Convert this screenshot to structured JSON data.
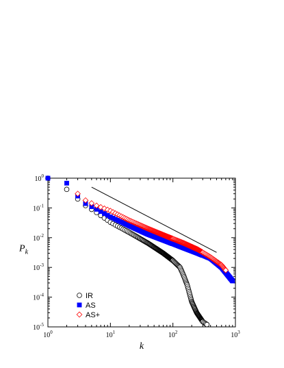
{
  "chart_data": {
    "type": "scatter",
    "x_scale": "log",
    "y_scale": "log",
    "xlim": [
      1,
      1000
    ],
    "ylim": [
      1e-05,
      1
    ],
    "xlabel": "k",
    "ylabel": "P_k",
    "ylabel_main": "P",
    "ylabel_sub": "k",
    "x_ticks": [
      {
        "value": 1,
        "base": "10",
        "exp": "0"
      },
      {
        "value": 10,
        "base": "10",
        "exp": "1"
      },
      {
        "value": 100,
        "base": "10",
        "exp": "2"
      },
      {
        "value": 1000,
        "base": "10",
        "exp": "3"
      }
    ],
    "y_ticks": [
      {
        "value": 1e-05,
        "base": "10",
        "exp": "-5"
      },
      {
        "value": 0.0001,
        "base": "10",
        "exp": "-4"
      },
      {
        "value": 0.001,
        "base": "10",
        "exp": "-3"
      },
      {
        "value": 0.01,
        "base": "10",
        "exp": "-2"
      },
      {
        "value": 0.1,
        "base": "10",
        "exp": "-1"
      },
      {
        "value": 1,
        "base": "10",
        "exp": "0"
      }
    ],
    "legend_position": "bottom-left",
    "series": [
      {
        "name": "IR",
        "marker": "circle-open",
        "color": "#000000",
        "anchors": [
          [
            1,
            1.0
          ],
          [
            2,
            0.42
          ],
          [
            3,
            0.2
          ],
          [
            4,
            0.12
          ],
          [
            6,
            0.07
          ],
          [
            10,
            0.033
          ],
          [
            20,
            0.015
          ],
          [
            40,
            0.0065
          ],
          [
            70,
            0.003
          ],
          [
            100,
            0.0017
          ],
          [
            130,
            0.001
          ],
          [
            150,
            0.0005
          ],
          [
            170,
            0.00025
          ],
          [
            200,
            7e-05
          ],
          [
            240,
            3e-05
          ],
          [
            300,
            1.5e-05
          ],
          [
            350,
            1.2e-05
          ]
        ]
      },
      {
        "name": "AS",
        "marker": "square-filled",
        "color": "#0000ff",
        "anchors": [
          [
            1,
            1.0
          ],
          [
            2,
            0.68
          ],
          [
            3,
            0.25
          ],
          [
            4,
            0.14
          ],
          [
            6,
            0.09
          ],
          [
            10,
            0.05
          ],
          [
            20,
            0.025
          ],
          [
            40,
            0.013
          ],
          [
            80,
            0.0075
          ],
          [
            150,
            0.0045
          ],
          [
            250,
            0.003
          ],
          [
            400,
            0.002
          ],
          [
            600,
            0.001
          ],
          [
            900,
            0.00035
          ]
        ]
      },
      {
        "name": "AS+",
        "marker": "diamond-open",
        "color": "#ff0000",
        "anchors": [
          [
            3,
            0.3
          ],
          [
            4,
            0.18
          ],
          [
            6,
            0.12
          ],
          [
            10,
            0.08
          ],
          [
            20,
            0.038
          ],
          [
            40,
            0.02
          ],
          [
            80,
            0.011
          ],
          [
            150,
            0.0065
          ],
          [
            250,
            0.004
          ],
          [
            400,
            0.0022
          ],
          [
            600,
            0.0012
          ],
          [
            700,
            0.0008
          ]
        ]
      }
    ],
    "reference_line": {
      "style": "solid",
      "color": "#000000",
      "points": [
        [
          5,
          0.5
        ],
        [
          500,
          0.0032
        ]
      ]
    }
  }
}
